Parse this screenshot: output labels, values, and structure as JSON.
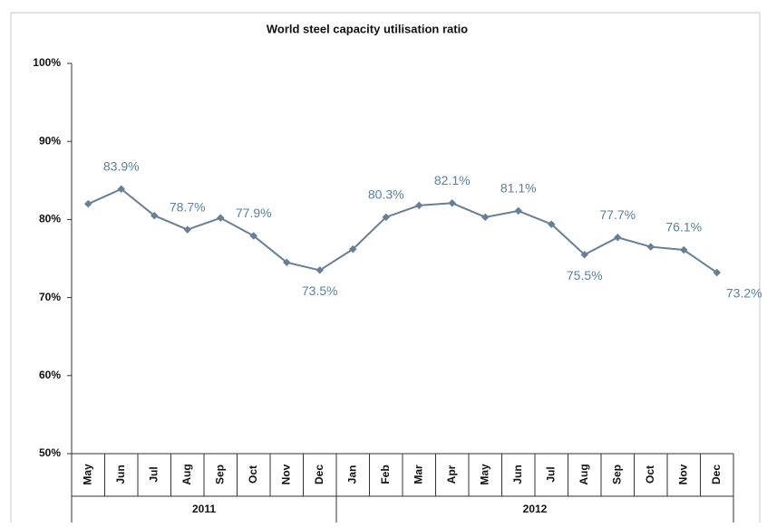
{
  "chart_data": {
    "type": "line",
    "title": "World steel capacity utilisation ratio",
    "categories": [
      "May",
      "Jun",
      "Jul",
      "Aug",
      "Sep",
      "Oct",
      "Nov",
      "Dec",
      "Jan",
      "Feb",
      "Mar",
      "Apr",
      "May",
      "Jun",
      "Jul",
      "Aug",
      "Sep",
      "Oct",
      "Nov",
      "Dec"
    ],
    "category_groups": [
      {
        "label": "2011",
        "count": 8
      },
      {
        "label": "2012",
        "count": 12
      }
    ],
    "series": [
      {
        "name": "World steel capacity utilisation ratio",
        "color": "#687f94",
        "values": [
          82.0,
          83.9,
          80.5,
          78.7,
          80.2,
          77.9,
          74.5,
          73.5,
          76.2,
          80.3,
          81.8,
          82.1,
          80.3,
          81.1,
          79.4,
          75.5,
          77.7,
          76.5,
          76.1,
          73.2
        ],
        "value_labels": [
          null,
          "83.9%",
          null,
          "78.7%",
          null,
          "77.9%",
          null,
          "73.5%",
          null,
          "80.3%",
          null,
          "82.1%",
          null,
          "81.1%",
          null,
          "75.5%",
          "77.7%",
          null,
          "76.1%",
          "73.2%"
        ]
      }
    ],
    "ylim": [
      50,
      100
    ],
    "yticks": [
      {
        "value": 50,
        "label": "50%"
      },
      {
        "value": 60,
        "label": "60%"
      },
      {
        "value": 70,
        "label": "70%"
      },
      {
        "value": 80,
        "label": "80%"
      },
      {
        "value": 90,
        "label": "90%"
      },
      {
        "value": 100,
        "label": "100%"
      }
    ],
    "grid": false,
    "label_color": "#5b7f9c"
  }
}
